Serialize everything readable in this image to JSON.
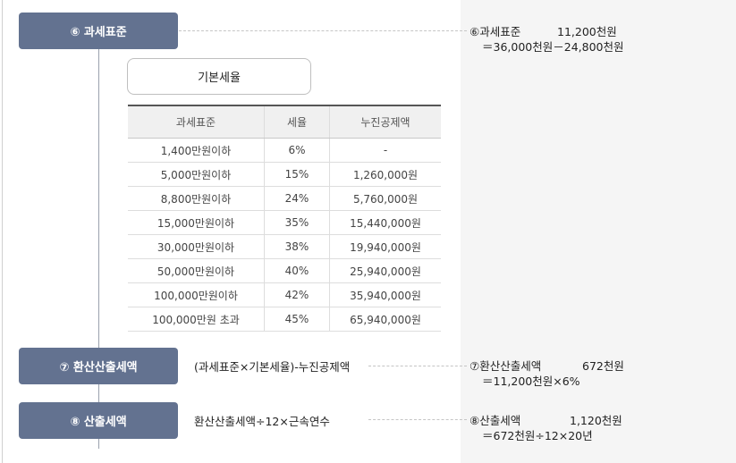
{
  "steps": [
    {
      "badge": "⑥ 과세표준"
    },
    {
      "badge": "⑦ 환산산출세액",
      "formula": "(과세표준×기본세율)-누진공제액"
    },
    {
      "badge": "⑧ 산출세액",
      "formula": "환산산출세액÷12×근속연수"
    }
  ],
  "rate_table": {
    "title": "기본세율",
    "headers": [
      "과세표준",
      "세율",
      "누진공제액"
    ],
    "rows": [
      [
        "1,400만원이하",
        "6%",
        "-"
      ],
      [
        "5,000만원이하",
        "15%",
        "1,260,000원"
      ],
      [
        "8,800만원이하",
        "24%",
        "5,760,000원"
      ],
      [
        "15,000만원이하",
        "35%",
        "15,440,000원"
      ],
      [
        "30,000만원이하",
        "38%",
        "19,940,000원"
      ],
      [
        "50,000만원이하",
        "40%",
        "25,940,000원"
      ],
      [
        "100,000만원이하",
        "42%",
        "35,940,000원"
      ],
      [
        "100,000만원 초과",
        "45%",
        "65,940,000원"
      ]
    ]
  },
  "calculations": [
    {
      "label": "⑥과세표준",
      "value": "11,200천원",
      "formula": "＝36,000천원－24,800천원"
    },
    {
      "label": "⑦환산산출세액",
      "value": "672천원",
      "formula": "＝11,200천원×6%"
    },
    {
      "label": "⑧산출세액",
      "value": "1,120천원",
      "formula": "＝672천원÷12×20년"
    }
  ]
}
